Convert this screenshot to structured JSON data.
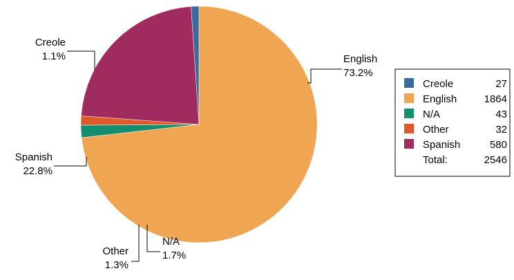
{
  "chart_data": {
    "type": "pie",
    "title": "",
    "slices": [
      {
        "label": "Creole",
        "count": 27,
        "percent_label": "1.1%",
        "color": "#3b6aa0"
      },
      {
        "label": "English",
        "count": 1864,
        "percent_label": "73.2%",
        "color": "#f0a552"
      },
      {
        "label": "N/A",
        "count": 43,
        "percent_label": "1.7%",
        "color": "#138f6e"
      },
      {
        "label": "Other",
        "count": 32,
        "percent_label": "1.3%",
        "color": "#e0592a"
      },
      {
        "label": "Spanish",
        "count": 580,
        "percent_label": "22.8%",
        "color": "#a02c5f"
      }
    ],
    "legend": {
      "placement": "right",
      "total_label": "Total:",
      "total_value": "2546"
    }
  }
}
